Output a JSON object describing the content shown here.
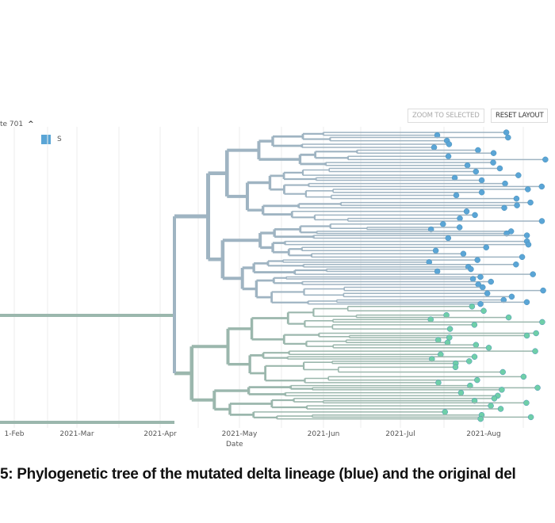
{
  "filter": {
    "label": "te 701",
    "chevron": "^"
  },
  "legend": {
    "label": "S",
    "color": "#5aa5d6"
  },
  "buttons": {
    "zoom_to_selected": "ZOOM TO SELECTED",
    "reset_layout": "RESET LAYOUT"
  },
  "axis": {
    "ticks": [
      "1-Feb",
      "2021-Mar",
      "2021-Apr",
      "2021-May",
      "2021-Jun",
      "2021-Jul",
      "2021-Aug"
    ],
    "label": "Date"
  },
  "colors": {
    "mutated": "#5aa5d6",
    "original": "#6fcfa8",
    "branch_blue": "#9fb4c2",
    "branch_green": "#9bb7ad"
  },
  "caption": "5: Phylogenetic tree of the mutated delta lineage (blue) and the original del"
}
